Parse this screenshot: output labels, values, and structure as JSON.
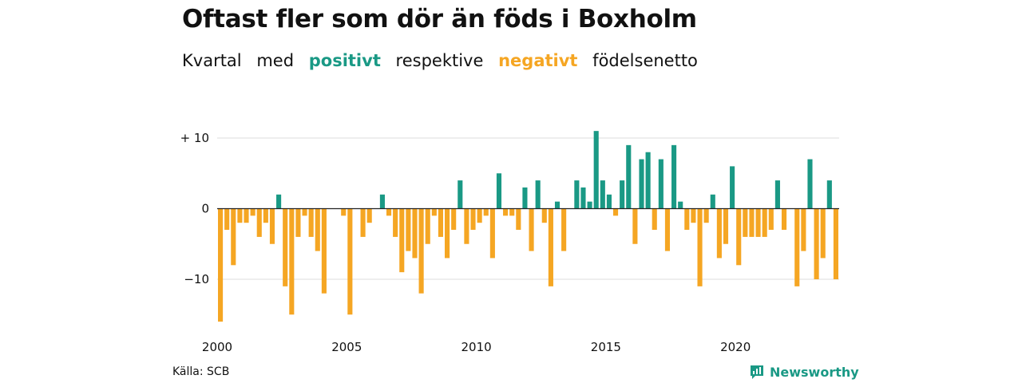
{
  "title": "Oftast fler som dör än föds i Boxholm",
  "subtitle": {
    "w1": "Kvartal",
    "w2": "med",
    "positive": "positivt",
    "w3": "respektive",
    "negative": "negativt",
    "w4": "födelsenetto"
  },
  "colors": {
    "positive": "#1a9985",
    "negative": "#f5a623",
    "grid": "#dddddd",
    "zero": "#222222"
  },
  "source": "Källa: SCB",
  "brand": {
    "name": "Newsworthy",
    "icon": "newsworthy-chart-icon"
  },
  "chart_data": {
    "type": "bar",
    "x_start": 2000,
    "x_step": 0.25,
    "xticks": [
      2000,
      2005,
      2010,
      2015,
      2020
    ],
    "yticks": [
      {
        "value": 10,
        "label": "+ 10"
      },
      {
        "value": 0,
        "label": "0"
      },
      {
        "value": -10,
        "label": "−10"
      }
    ],
    "ylim": [
      -16,
      11
    ],
    "grid": true,
    "values": [
      -16,
      -3,
      -8,
      -2,
      -2,
      -1,
      -4,
      -2,
      -5,
      2,
      -11,
      -15,
      -4,
      -1,
      -4,
      -6,
      -12,
      0,
      0,
      -1,
      -15,
      0,
      -4,
      -2,
      0,
      2,
      -1,
      -4,
      -9,
      -6,
      -7,
      -12,
      -5,
      -1,
      -4,
      -7,
      -3,
      4,
      -5,
      -3,
      -2,
      -1,
      -7,
      5,
      -1,
      -1,
      -3,
      3,
      -6,
      4,
      -2,
      -11,
      1,
      -6,
      0,
      4,
      3,
      1,
      11,
      4,
      2,
      -1,
      4,
      9,
      -5,
      7,
      8,
      -3,
      7,
      -6,
      9,
      1,
      -3,
      -2,
      -11,
      -2,
      2,
      -7,
      -5,
      6,
      -8,
      -4,
      -4,
      -4,
      -4,
      -3,
      4,
      -3,
      0,
      -11,
      -6,
      7,
      -10,
      -7,
      4,
      -10
    ]
  }
}
